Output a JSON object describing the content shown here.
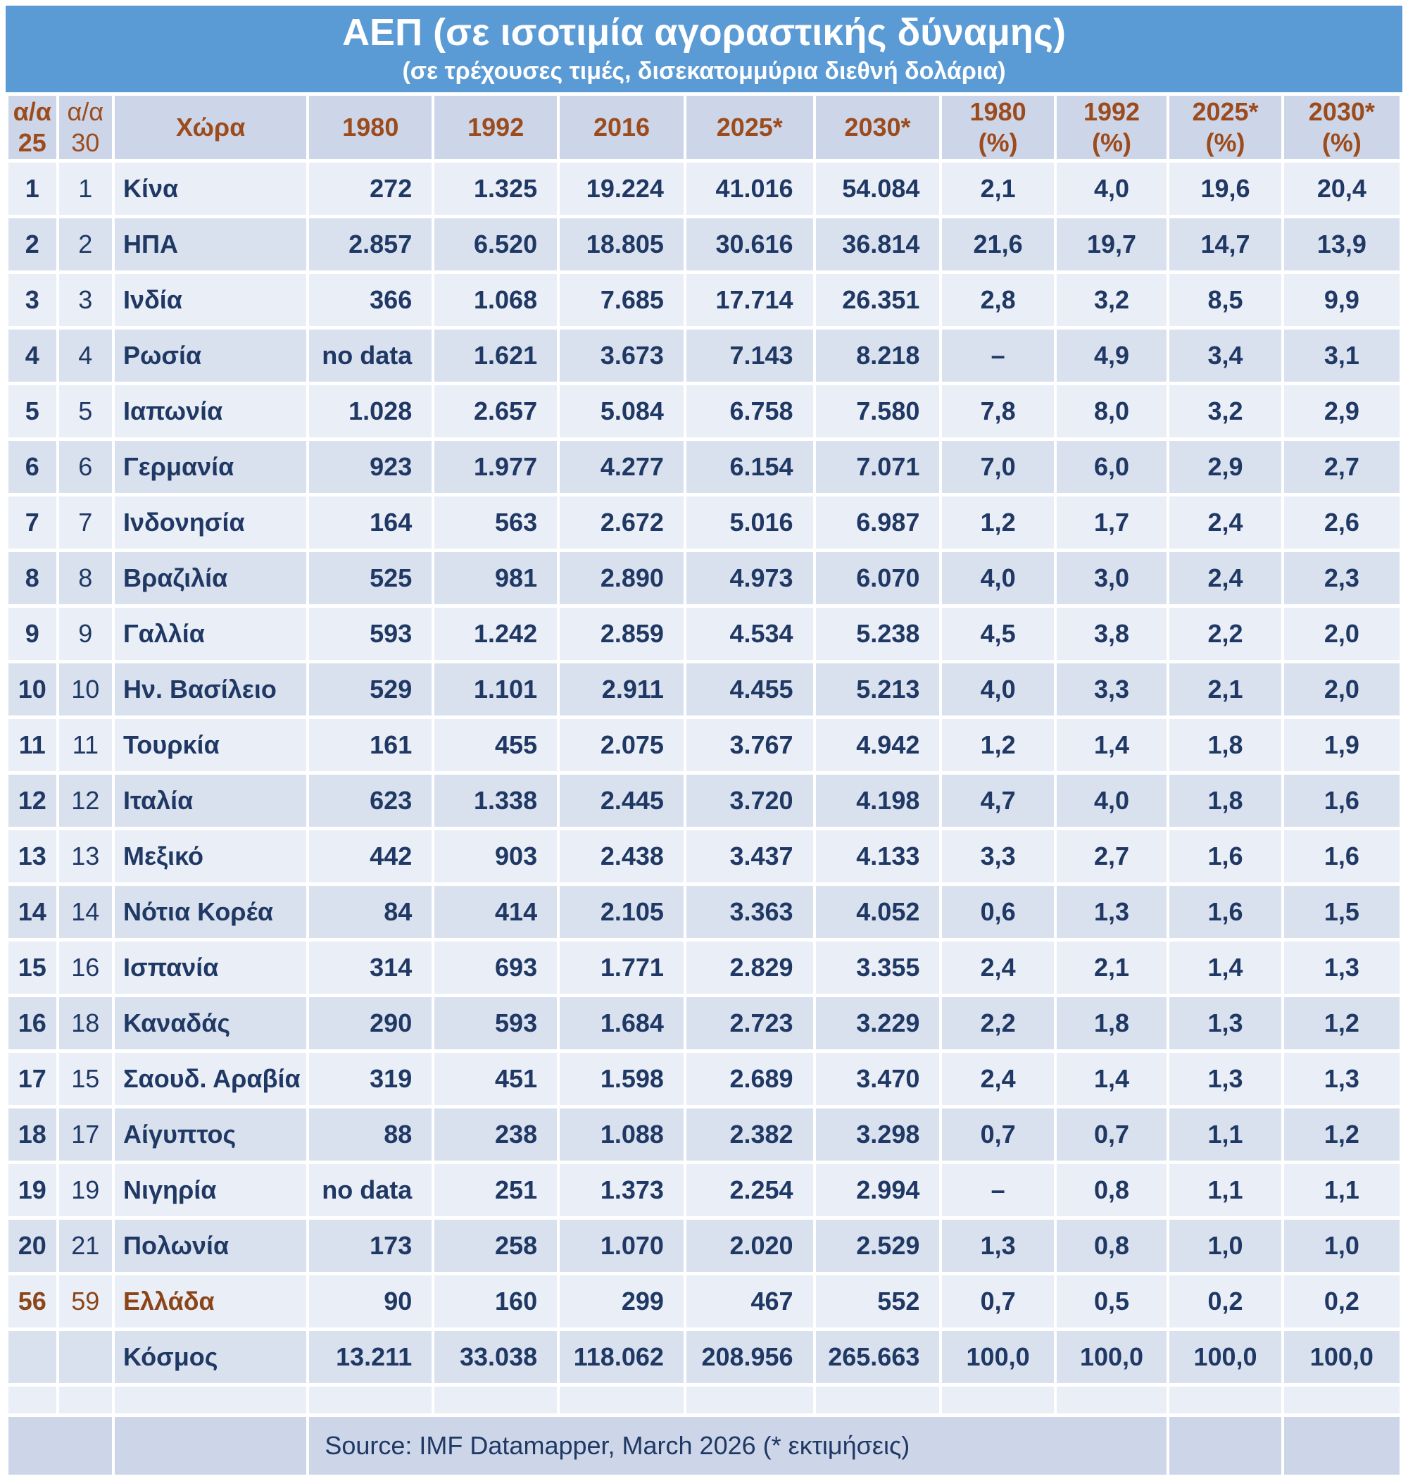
{
  "title": "ΑΕΠ (σε ισοτιμία αγοραστικής δύναμης)",
  "subtitle": "(σε τρέχουσες τιμές, δισεκατομμύρια διεθνή δολάρια)",
  "source": "Source: IMF Datamapper, March 2026 (* εκτιμήσεις)",
  "colors": {
    "title_band": "#5B9BD5",
    "header_footer_bg": "#CDD6E9",
    "row_light": "#EAEEF7",
    "row_dark": "#D9E1EF",
    "header_text_brown": "#9C4B1C",
    "highlight_brown": "#8C4518",
    "data_text_navy": "#1F3864",
    "title_text": "#FFFFFF"
  },
  "columns": [
    {
      "id": "rank25",
      "line1": "α/α",
      "line2": "25"
    },
    {
      "id": "rank30",
      "line1": "α/α",
      "line2": "30"
    },
    {
      "id": "country",
      "line1": "Χώρα",
      "line2": ""
    },
    {
      "id": "y1980",
      "line1": "1980",
      "line2": ""
    },
    {
      "id": "y1992",
      "line1": "1992",
      "line2": ""
    },
    {
      "id": "y2016",
      "line1": "2016",
      "line2": ""
    },
    {
      "id": "y2025",
      "line1": "2025*",
      "line2": ""
    },
    {
      "id": "y2030",
      "line1": "2030*",
      "line2": ""
    },
    {
      "id": "p1980",
      "line1": "1980",
      "line2": "(%)"
    },
    {
      "id": "p1992",
      "line1": "1992",
      "line2": "(%)"
    },
    {
      "id": "p2025",
      "line1": "2025*",
      "line2": "(%)"
    },
    {
      "id": "p2030",
      "line1": "2030*",
      "line2": "(%)"
    }
  ],
  "col_widths_pct": [
    3.5,
    3.9,
    14.1,
    9.0,
    9.0,
    9.1,
    9.3,
    9.1,
    8.2,
    8.1,
    8.2,
    8.5
  ],
  "rows": [
    {
      "rank25": "1",
      "rank30": "1",
      "country": "Κίνα",
      "y1980": "272",
      "y1992": "1.325",
      "y2016": "19.224",
      "y2025": "41.016",
      "y2030": "54.084",
      "p1980": "2,1",
      "p1992": "4,0",
      "p2025": "19,6",
      "p2030": "20,4",
      "highlight": false
    },
    {
      "rank25": "2",
      "rank30": "2",
      "country": "ΗΠΑ",
      "y1980": "2.857",
      "y1992": "6.520",
      "y2016": "18.805",
      "y2025": "30.616",
      "y2030": "36.814",
      "p1980": "21,6",
      "p1992": "19,7",
      "p2025": "14,7",
      "p2030": "13,9",
      "highlight": false
    },
    {
      "rank25": "3",
      "rank30": "3",
      "country": "Ινδία",
      "y1980": "366",
      "y1992": "1.068",
      "y2016": "7.685",
      "y2025": "17.714",
      "y2030": "26.351",
      "p1980": "2,8",
      "p1992": "3,2",
      "p2025": "8,5",
      "p2030": "9,9",
      "highlight": false
    },
    {
      "rank25": "4",
      "rank30": "4",
      "country": "Ρωσία",
      "y1980": "no data",
      "y1992": "1.621",
      "y2016": "3.673",
      "y2025": "7.143",
      "y2030": "8.218",
      "p1980": "–",
      "p1992": "4,9",
      "p2025": "3,4",
      "p2030": "3,1",
      "highlight": false
    },
    {
      "rank25": "5",
      "rank30": "5",
      "country": "Ιαπωνία",
      "y1980": "1.028",
      "y1992": "2.657",
      "y2016": "5.084",
      "y2025": "6.758",
      "y2030": "7.580",
      "p1980": "7,8",
      "p1992": "8,0",
      "p2025": "3,2",
      "p2030": "2,9",
      "highlight": false
    },
    {
      "rank25": "6",
      "rank30": "6",
      "country": "Γερμανία",
      "y1980": "923",
      "y1992": "1.977",
      "y2016": "4.277",
      "y2025": "6.154",
      "y2030": "7.071",
      "p1980": "7,0",
      "p1992": "6,0",
      "p2025": "2,9",
      "p2030": "2,7",
      "highlight": false
    },
    {
      "rank25": "7",
      "rank30": "7",
      "country": "Ινδονησία",
      "y1980": "164",
      "y1992": "563",
      "y2016": "2.672",
      "y2025": "5.016",
      "y2030": "6.987",
      "p1980": "1,2",
      "p1992": "1,7",
      "p2025": "2,4",
      "p2030": "2,6",
      "highlight": false
    },
    {
      "rank25": "8",
      "rank30": "8",
      "country": "Βραζιλία",
      "y1980": "525",
      "y1992": "981",
      "y2016": "2.890",
      "y2025": "4.973",
      "y2030": "6.070",
      "p1980": "4,0",
      "p1992": "3,0",
      "p2025": "2,4",
      "p2030": "2,3",
      "highlight": false
    },
    {
      "rank25": "9",
      "rank30": "9",
      "country": "Γαλλία",
      "y1980": "593",
      "y1992": "1.242",
      "y2016": "2.859",
      "y2025": "4.534",
      "y2030": "5.238",
      "p1980": "4,5",
      "p1992": "3,8",
      "p2025": "2,2",
      "p2030": "2,0",
      "highlight": false
    },
    {
      "rank25": "10",
      "rank30": "10",
      "country": "Ην. Βασίλειο",
      "y1980": "529",
      "y1992": "1.101",
      "y2016": "2.911",
      "y2025": "4.455",
      "y2030": "5.213",
      "p1980": "4,0",
      "p1992": "3,3",
      "p2025": "2,1",
      "p2030": "2,0",
      "highlight": false
    },
    {
      "rank25": "11",
      "rank30": "11",
      "country": "Τουρκία",
      "y1980": "161",
      "y1992": "455",
      "y2016": "2.075",
      "y2025": "3.767",
      "y2030": "4.942",
      "p1980": "1,2",
      "p1992": "1,4",
      "p2025": "1,8",
      "p2030": "1,9",
      "highlight": false
    },
    {
      "rank25": "12",
      "rank30": "12",
      "country": "Ιταλία",
      "y1980": "623",
      "y1992": "1.338",
      "y2016": "2.445",
      "y2025": "3.720",
      "y2030": "4.198",
      "p1980": "4,7",
      "p1992": "4,0",
      "p2025": "1,8",
      "p2030": "1,6",
      "highlight": false
    },
    {
      "rank25": "13",
      "rank30": "13",
      "country": "Μεξικό",
      "y1980": "442",
      "y1992": "903",
      "y2016": "2.438",
      "y2025": "3.437",
      "y2030": "4.133",
      "p1980": "3,3",
      "p1992": "2,7",
      "p2025": "1,6",
      "p2030": "1,6",
      "highlight": false
    },
    {
      "rank25": "14",
      "rank30": "14",
      "country": "Νότια Κορέα",
      "y1980": "84",
      "y1992": "414",
      "y2016": "2.105",
      "y2025": "3.363",
      "y2030": "4.052",
      "p1980": "0,6",
      "p1992": "1,3",
      "p2025": "1,6",
      "p2030": "1,5",
      "highlight": false
    },
    {
      "rank25": "15",
      "rank30": "16",
      "country": "Ισπανία",
      "y1980": "314",
      "y1992": "693",
      "y2016": "1.771",
      "y2025": "2.829",
      "y2030": "3.355",
      "p1980": "2,4",
      "p1992": "2,1",
      "p2025": "1,4",
      "p2030": "1,3",
      "highlight": false
    },
    {
      "rank25": "16",
      "rank30": "18",
      "country": "Καναδάς",
      "y1980": "290",
      "y1992": "593",
      "y2016": "1.684",
      "y2025": "2.723",
      "y2030": "3.229",
      "p1980": "2,2",
      "p1992": "1,8",
      "p2025": "1,3",
      "p2030": "1,2",
      "highlight": false
    },
    {
      "rank25": "17",
      "rank30": "15",
      "country": "Σαουδ. Αραβία",
      "y1980": "319",
      "y1992": "451",
      "y2016": "1.598",
      "y2025": "2.689",
      "y2030": "3.470",
      "p1980": "2,4",
      "p1992": "1,4",
      "p2025": "1,3",
      "p2030": "1,3",
      "highlight": false
    },
    {
      "rank25": "18",
      "rank30": "17",
      "country": "Αίγυπτος",
      "y1980": "88",
      "y1992": "238",
      "y2016": "1.088",
      "y2025": "2.382",
      "y2030": "3.298",
      "p1980": "0,7",
      "p1992": "0,7",
      "p2025": "1,1",
      "p2030": "1,2",
      "highlight": false
    },
    {
      "rank25": "19",
      "rank30": "19",
      "country": "Νιγηρία",
      "y1980": "no data",
      "y1992": "251",
      "y2016": "1.373",
      "y2025": "2.254",
      "y2030": "2.994",
      "p1980": "–",
      "p1992": "0,8",
      "p2025": "1,1",
      "p2030": "1,1",
      "highlight": false
    },
    {
      "rank25": "20",
      "rank30": "21",
      "country": "Πολωνία",
      "y1980": "173",
      "y1992": "258",
      "y2016": "1.070",
      "y2025": "2.020",
      "y2030": "2.529",
      "p1980": "1,3",
      "p1992": "0,8",
      "p2025": "1,0",
      "p2030": "1,0",
      "highlight": false
    },
    {
      "rank25": "56",
      "rank30": "59",
      "country": "Ελλάδα",
      "y1980": "90",
      "y1992": "160",
      "y2016": "299",
      "y2025": "467",
      "y2030": "552",
      "p1980": "0,7",
      "p1992": "0,5",
      "p2025": "0,2",
      "p2030": "0,2",
      "highlight": true
    },
    {
      "rank25": "",
      "rank30": "",
      "country": "Κόσμος",
      "y1980": "13.211",
      "y1992": "33.038",
      "y2016": "118.062",
      "y2025": "208.956",
      "y2030": "265.663",
      "p1980": "100,0",
      "p1992": "100,0",
      "p2025": "100,0",
      "p2030": "100,0",
      "highlight": false
    }
  ]
}
